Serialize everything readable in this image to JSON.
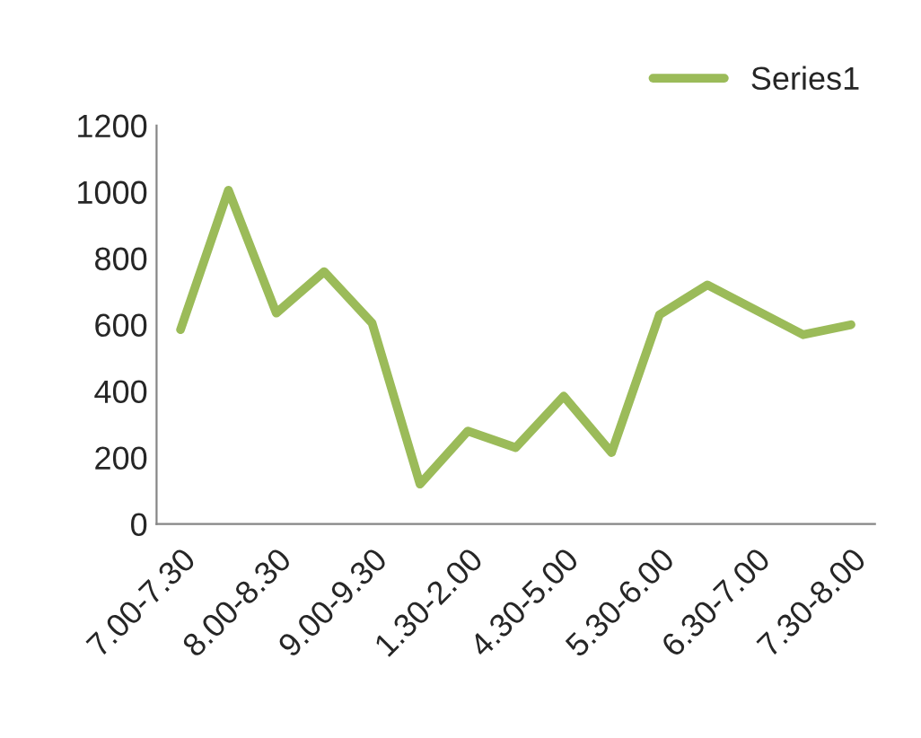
{
  "chart_data": {
    "type": "line",
    "categories": [
      "7.00-7.30",
      null,
      "8.00-8.30",
      null,
      "9.00-9.30",
      null,
      "1.30-2.00",
      null,
      "4.30-5.00",
      null,
      "5.30-6.00",
      null,
      "6.30-7.00",
      null,
      "7.30-8.00"
    ],
    "series": [
      {
        "name": "Series1",
        "color": "#9bbb59",
        "values": [
          585,
          1005,
          635,
          760,
          605,
          120,
          280,
          230,
          385,
          215,
          630,
          720,
          645,
          570,
          600
        ]
      }
    ],
    "ylim": [
      0,
      1200
    ],
    "yticks": [
      0,
      200,
      400,
      600,
      800,
      1000,
      1200
    ],
    "grid": false,
    "legend": "top right",
    "marker": "none",
    "line_style": "solid"
  }
}
